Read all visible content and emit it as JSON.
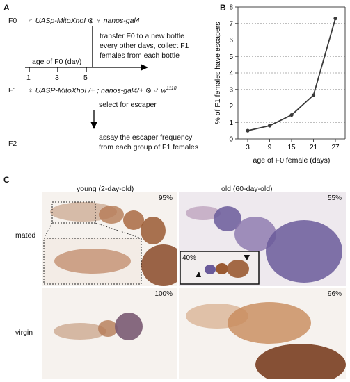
{
  "panel_a": {
    "letter": "A",
    "f0_gen": "F0",
    "f0_male_sym": "♂",
    "f0_male_gene": "UASp-MitoXhoI",
    "cross_sym": "⊗",
    "f0_female_sym": "♀",
    "f0_female_gene": "nanos-gal4",
    "transfer_line1": "transfer F0 to a new bottle",
    "transfer_line2": "every other days, collect F1",
    "transfer_line3": "females from each bottle",
    "age_label": "age of F0 (day)",
    "ticks": [
      "1",
      "3",
      "5"
    ],
    "f1_gen": "F1",
    "f1_female_sym": "♀",
    "f1_female_gene": "UASP-MitoXhoI /+ ; nanos-gal4/+",
    "f1_cross_sym": "⊗",
    "f1_male_sym": "♂",
    "f1_male_gene": "w",
    "f1_male_sup": "1118",
    "select": "select for escaper",
    "assay_line1": "assay the escaper frequency",
    "assay_line2": "from each group of F1 females",
    "f2_gen": "F2"
  },
  "panel_b": {
    "letter": "B"
  },
  "chart_data": {
    "type": "line",
    "x": [
      3,
      9,
      15,
      21,
      27
    ],
    "categories": [
      "3",
      "9",
      "15",
      "21",
      "27"
    ],
    "series": [
      {
        "values": [
          0.5,
          0.8,
          1.45,
          2.65,
          7.3
        ]
      }
    ],
    "yticks": [
      "0",
      "1",
      "2",
      "3",
      "4",
      "5",
      "6",
      "7",
      "8"
    ],
    "ylim": [
      0,
      8
    ],
    "xlabel": "age of F0 female (days)",
    "ylabel": "% of F1 females have escapers",
    "grid": "horizontal dotted",
    "line_color": "#3a3a3a"
  },
  "panel_c": {
    "letter": "C",
    "col_young": "young (2-day-old)",
    "col_old": "old (60-day-old)",
    "row_mated": "mated",
    "row_virgin": "virgin",
    "pct_young_mated": "95%",
    "pct_old_mated": "55%",
    "pct_inset": "40%",
    "pct_young_virgin": "100%",
    "pct_old_virgin": "96%",
    "stain_brown": "#9a5a32",
    "stain_purple": "#6a5a9a"
  }
}
